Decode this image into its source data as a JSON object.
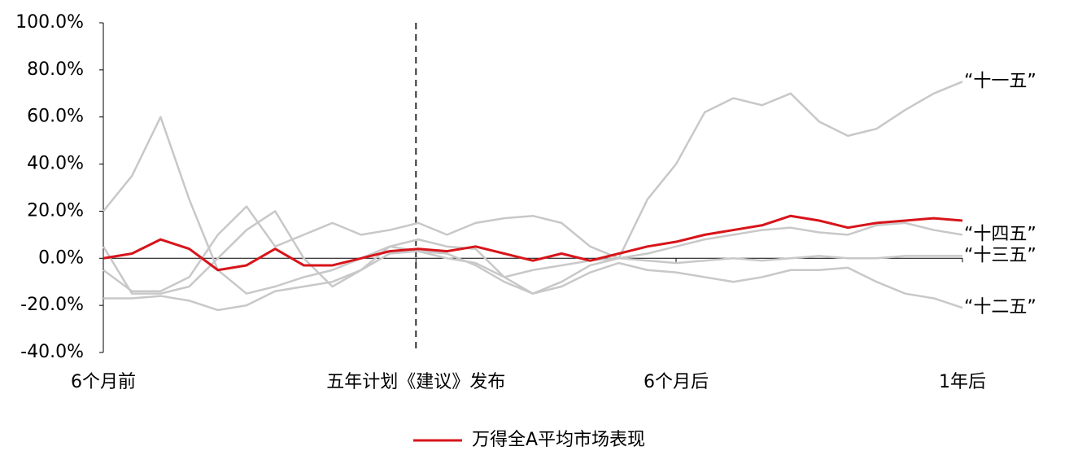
{
  "chart_data": {
    "type": "line",
    "x": [
      0,
      12,
      24,
      36,
      48,
      60,
      72,
      84,
      96,
      108,
      120,
      132,
      144,
      156,
      168,
      180,
      192,
      204,
      216,
      228,
      240,
      252,
      264,
      276,
      288,
      300,
      312,
      324,
      336,
      348,
      360
    ],
    "xlim": [
      0,
      360
    ],
    "xticks": [
      {
        "value": 0,
        "label": "6个月前"
      },
      {
        "value": 131,
        "label": "五年计划《建议》发布"
      },
      {
        "value": 240,
        "label": "6个月后"
      },
      {
        "value": 360,
        "label": "1年后"
      }
    ],
    "vline": 131,
    "ylim": [
      -40,
      100
    ],
    "yticks": [
      {
        "value": 100,
        "label": "100.0%"
      },
      {
        "value": 80,
        "label": "80.0%"
      },
      {
        "value": 60,
        "label": "60.0%"
      },
      {
        "value": 40,
        "label": "40.0%"
      },
      {
        "value": 20,
        "label": "20.0%"
      },
      {
        "value": 0,
        "label": "0.0%"
      },
      {
        "value": -20,
        "label": "-20.0%"
      },
      {
        "value": -40,
        "label": "-40.0%"
      }
    ],
    "series": [
      {
        "name": "“十一五”",
        "color": "#c8c8c8",
        "in_legend": false,
        "values": [
          20,
          35,
          60,
          25,
          -5,
          -15,
          -12,
          -8,
          -5,
          0,
          5,
          3,
          0,
          -2,
          -8,
          -5,
          -3,
          -1,
          0,
          25,
          40,
          62,
          68,
          65,
          70,
          58,
          52,
          55,
          63,
          70,
          75
        ]
      },
      {
        "name": "“十四五”",
        "color": "#c8c8c8",
        "in_legend": false,
        "values": [
          -5,
          -14,
          -14,
          -8,
          10,
          22,
          5,
          10,
          15,
          10,
          12,
          15,
          10,
          15,
          17,
          18,
          15,
          5,
          0,
          2,
          5,
          8,
          10,
          12,
          13,
          11,
          10,
          14,
          15,
          12,
          10
        ]
      },
      {
        "name": "“十三五”",
        "color": "#c8c8c8",
        "in_legend": false,
        "values": [
          5,
          -15,
          -15,
          -12,
          0,
          12,
          20,
          0,
          -12,
          -5,
          5,
          8,
          5,
          4,
          -8,
          -15,
          -10,
          -3,
          0,
          -1,
          -2,
          -1,
          0,
          -1,
          0,
          1,
          0,
          0,
          1,
          1,
          1
        ]
      },
      {
        "name": "“十二五”",
        "color": "#c8c8c8",
        "in_legend": false,
        "values": [
          -17,
          -17,
          -16,
          -18,
          -22,
          -20,
          -14,
          -12,
          -10,
          -5,
          2,
          3,
          2,
          -3,
          -10,
          -15,
          -12,
          -6,
          -2,
          -5,
          -6,
          -8,
          -10,
          -8,
          -5,
          -5,
          -4,
          -10,
          -15,
          -17,
          -21
        ]
      },
      {
        "name": "万得全A平均市场表现",
        "color": "#d7141a",
        "in_legend": true,
        "values": [
          0,
          2,
          8,
          4,
          -5,
          -3,
          4,
          -3,
          -3,
          0,
          3,
          4,
          3,
          5,
          2,
          -1,
          2,
          -1,
          2,
          5,
          7,
          10,
          12,
          14,
          18,
          16,
          13,
          15,
          16,
          17,
          16
        ]
      }
    ]
  }
}
